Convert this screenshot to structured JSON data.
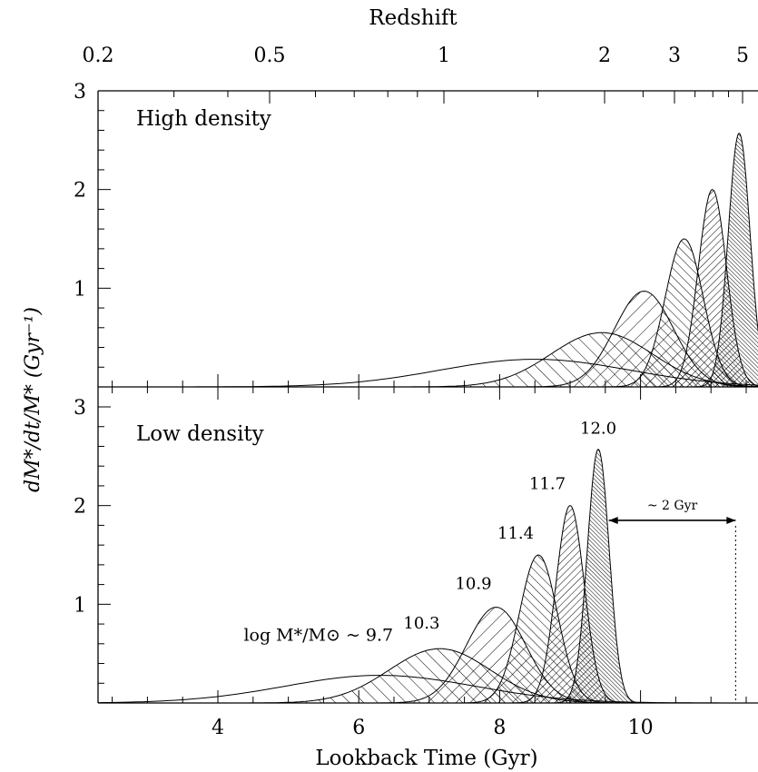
{
  "chart_data": {
    "type": "area",
    "top_axis": {
      "label": "Redshift",
      "ticks": [
        {
          "z": 0.2,
          "label": "0.2"
        },
        {
          "z": 0.5,
          "label": "0.5"
        },
        {
          "z": 1,
          "label": "1"
        },
        {
          "z": 2,
          "label": "2"
        },
        {
          "z": 3,
          "label": "3"
        },
        {
          "z": 5,
          "label": "5"
        }
      ]
    },
    "xlabel": "Lookback Time (Gyr)",
    "xlim": [
      2.5,
      11.8
    ],
    "xticks": [
      4,
      6,
      8,
      10
    ],
    "ylabel": "dM*/dt/M* (Gyr⁻¹)",
    "ylim": [
      0,
      3.1
    ],
    "yticks": [
      1,
      2,
      3
    ],
    "panels": [
      {
        "title": "High density",
        "series": [
          {
            "mass": 9.7,
            "peak_t": 8.5,
            "sigma": 1.35,
            "peak": 0.28,
            "hatch": "none"
          },
          {
            "mass": 10.3,
            "peak_t": 9.45,
            "sigma": 0.72,
            "peak": 0.55,
            "hatch": "back"
          },
          {
            "mass": 10.9,
            "peak_t": 10.05,
            "sigma": 0.42,
            "peak": 0.97,
            "hatch": "forward"
          },
          {
            "mass": 11.4,
            "peak_t": 10.62,
            "sigma": 0.27,
            "peak": 1.5,
            "hatch": "back-dense"
          },
          {
            "mass": 11.7,
            "peak_t": 11.02,
            "sigma": 0.2,
            "peak": 2.0,
            "hatch": "forward-dense"
          },
          {
            "mass": 12.0,
            "peak_t": 11.4,
            "sigma": 0.155,
            "peak": 2.57,
            "hatch": "back-very-dense"
          }
        ]
      },
      {
        "title": "Low density",
        "series": [
          {
            "mass": 9.7,
            "label": "log M*/M⊙ ~ 9.7",
            "peak_t": 6.3,
            "sigma": 1.35,
            "peak": 0.28,
            "hatch": "none"
          },
          {
            "mass": 10.3,
            "label": "10.3",
            "peak_t": 7.15,
            "sigma": 0.72,
            "peak": 0.55,
            "hatch": "back"
          },
          {
            "mass": 10.9,
            "label": "10.9",
            "peak_t": 7.95,
            "sigma": 0.42,
            "peak": 0.97,
            "hatch": "forward"
          },
          {
            "mass": 11.4,
            "label": "11.4",
            "peak_t": 8.55,
            "sigma": 0.27,
            "peak": 1.5,
            "hatch": "back-dense"
          },
          {
            "mass": 11.7,
            "label": "11.7",
            "peak_t": 9.0,
            "sigma": 0.2,
            "peak": 2.0,
            "hatch": "forward-dense"
          },
          {
            "mass": 12.0,
            "label": "12.0",
            "peak_t": 9.4,
            "sigma": 0.155,
            "peak": 2.57,
            "hatch": "back-very-dense"
          }
        ],
        "annotation": {
          "text": "~ 2 Gyr",
          "from_t": 9.55,
          "to_t": 11.35,
          "y": 1.85
        },
        "vline_t": 11.35
      }
    ],
    "top_panel_vline_t": 11.35
  }
}
